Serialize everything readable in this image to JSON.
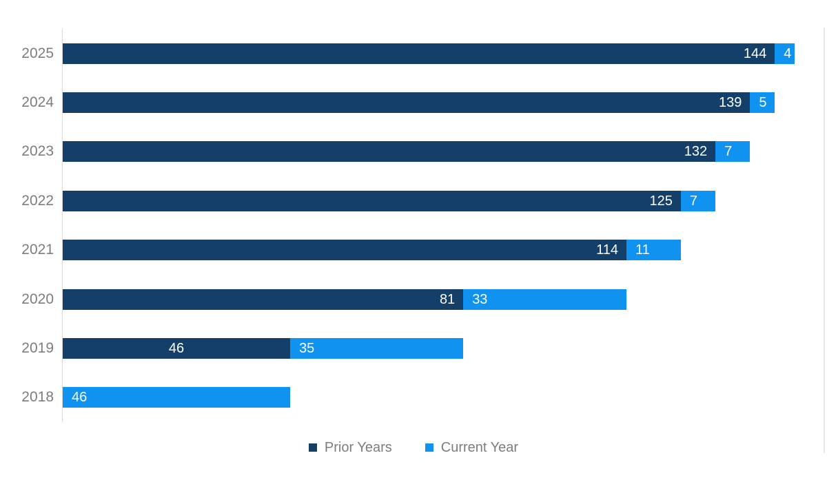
{
  "chart_data": {
    "type": "bar",
    "orientation": "horizontal",
    "stacked": true,
    "title": "",
    "xlabel": "",
    "ylabel": "",
    "categories": [
      "2025",
      "2024",
      "2023",
      "2022",
      "2021",
      "2020",
      "2019",
      "2018"
    ],
    "series": [
      {
        "name": "Prior Years",
        "color": "#133F68",
        "values": [
          144,
          139,
          132,
          125,
          114,
          81,
          46,
          0
        ]
      },
      {
        "name": "Current Year",
        "color": "#0F92F0",
        "values": [
          4,
          5,
          7,
          7,
          11,
          33,
          35,
          46
        ]
      }
    ],
    "totals": [
      148,
      144,
      139,
      132,
      125,
      114,
      81,
      46
    ],
    "xlim": [
      0,
      154
    ],
    "grid": false,
    "value_labels": true,
    "prior_label_align": [
      "end",
      "end",
      "end",
      "end",
      "end",
      "end",
      "center",
      "none"
    ],
    "legend_position": "bottom",
    "axis_line_color": "#D9D9D9",
    "right_border_color": "#E7E7E7",
    "tick_label_color": "#7D7D7D",
    "value_label_color": "#FFFFFF",
    "background_color": "#FFFFFF"
  }
}
